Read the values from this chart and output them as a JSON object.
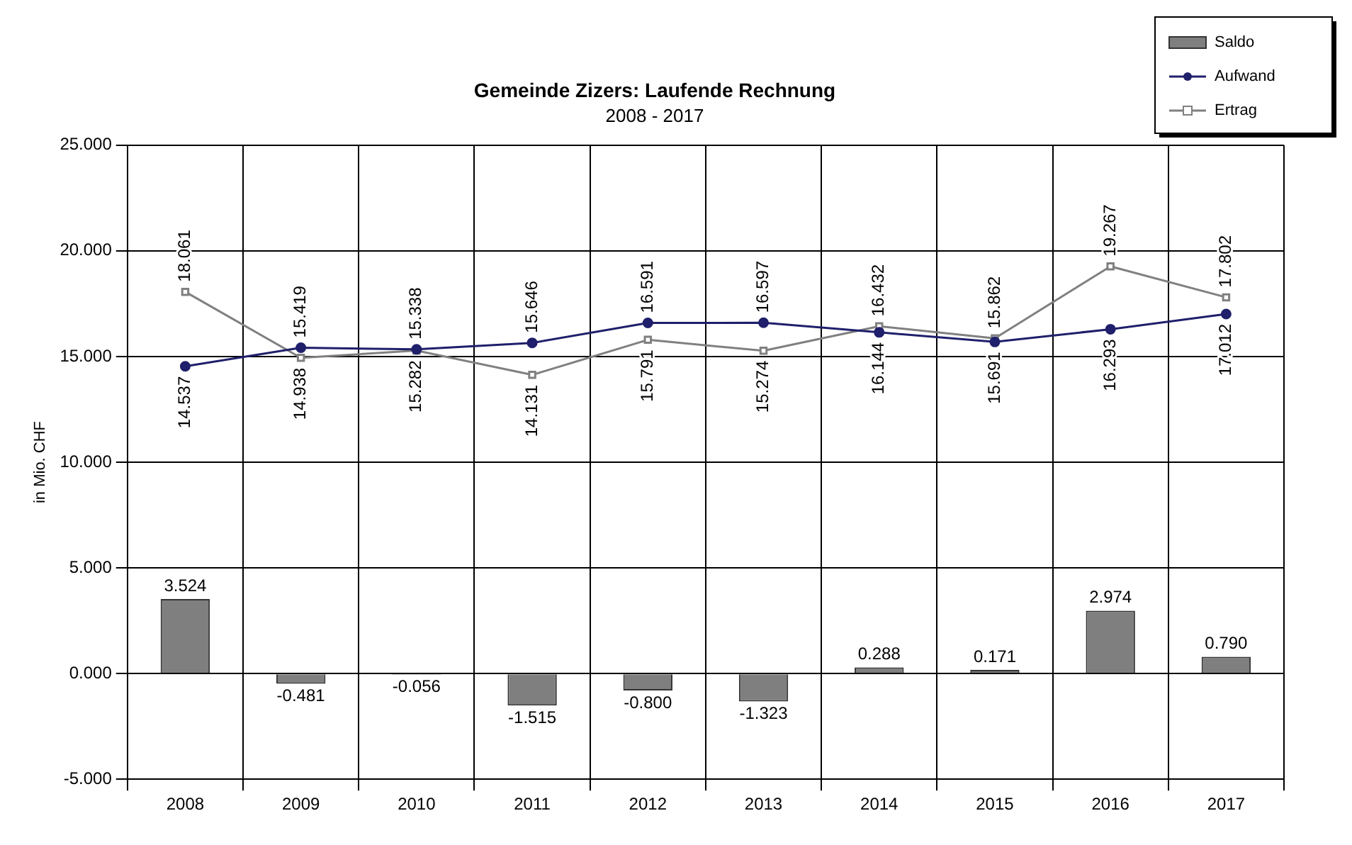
{
  "chart_data": {
    "type": "bar",
    "title": "Gemeinde Zizers: Laufende Rechnung",
    "subtitle": "2008 - 2017",
    "ylabel": "in Mio. CHF",
    "categories": [
      "2008",
      "2009",
      "2010",
      "2011",
      "2012",
      "2013",
      "2014",
      "2015",
      "2016",
      "2017"
    ],
    "series": [
      {
        "name": "Saldo",
        "color": "#7f7f7f",
        "values": [
          3.524,
          -0.481,
          -0.056,
          -1.515,
          -0.8,
          -1.323,
          0.288,
          0.171,
          2.974,
          0.79
        ],
        "value_labels": [
          "3.524",
          "-0.481",
          "-0.056",
          "-1.515",
          "-0.800",
          "-1.323",
          "0.288",
          "0.171",
          "2.974",
          "0.790"
        ]
      },
      {
        "name": "Aufwand",
        "type": "line",
        "color": "#1f1f6b",
        "marker": "circle",
        "values": [
          14.537,
          15.419,
          15.338,
          15.646,
          16.591,
          16.597,
          16.144,
          15.691,
          16.293,
          17.012
        ],
        "value_labels": [
          "14.537",
          "15.419",
          "15.338",
          "15.646",
          "16.591",
          "16.597",
          "16.144",
          "15.691",
          "16.293",
          "17.012"
        ]
      },
      {
        "name": "Ertrag",
        "type": "line",
        "color": "#808080",
        "marker": "square",
        "values": [
          18.061,
          14.938,
          15.282,
          14.131,
          15.791,
          15.274,
          16.432,
          15.862,
          19.267,
          17.802
        ],
        "value_labels": [
          "18.061",
          "14.938",
          "15.282",
          "14.131",
          "15.791",
          "15.274",
          "16.432",
          "15.862",
          "19.267",
          "17.802"
        ]
      }
    ],
    "ylim": [
      -5,
      25
    ],
    "yticks": [
      {
        "value": -5,
        "label": "-5.000"
      },
      {
        "value": 0,
        "label": "0.000"
      },
      {
        "value": 5,
        "label": "5.000"
      },
      {
        "value": 10,
        "label": "10.000"
      },
      {
        "value": 15,
        "label": "15.000"
      },
      {
        "value": 20,
        "label": "20.000"
      },
      {
        "value": 25,
        "label": "25.000"
      }
    ],
    "grid": true,
    "legend": "top right"
  }
}
